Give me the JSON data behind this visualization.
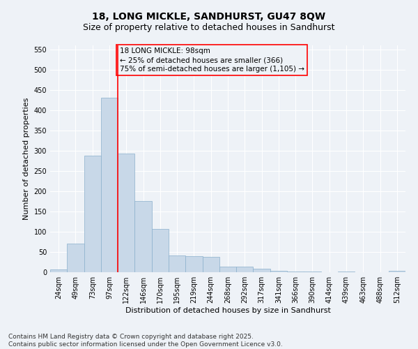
{
  "title_line1": "18, LONG MICKLE, SANDHURST, GU47 8QW",
  "title_line2": "Size of property relative to detached houses in Sandhurst",
  "xlabel": "Distribution of detached houses by size in Sandhurst",
  "ylabel": "Number of detached properties",
  "categories": [
    "24sqm",
    "49sqm",
    "73sqm",
    "97sqm",
    "122sqm",
    "146sqm",
    "170sqm",
    "195sqm",
    "219sqm",
    "244sqm",
    "268sqm",
    "292sqm",
    "317sqm",
    "341sqm",
    "366sqm",
    "390sqm",
    "414sqm",
    "439sqm",
    "463sqm",
    "488sqm",
    "512sqm"
  ],
  "values": [
    7,
    70,
    288,
    430,
    293,
    175,
    106,
    42,
    40,
    38,
    14,
    14,
    8,
    4,
    1,
    1,
    0,
    1,
    0,
    0,
    3
  ],
  "bar_color": "#c8d8e8",
  "bar_edge_color": "#8ab0cc",
  "vline_x_index": 3,
  "vline_color": "red",
  "annotation_line1": "18 LONG MICKLE: 98sqm",
  "annotation_line2": "← 25% of detached houses are smaller (366)",
  "annotation_line3": "75% of semi-detached houses are larger (1,105) →",
  "box_color": "red",
  "footer_line1": "Contains HM Land Registry data © Crown copyright and database right 2025.",
  "footer_line2": "Contains public sector information licensed under the Open Government Licence v3.0.",
  "ylim": [
    0,
    560
  ],
  "yticks": [
    0,
    50,
    100,
    150,
    200,
    250,
    300,
    350,
    400,
    450,
    500,
    550
  ],
  "background_color": "#eef2f7",
  "grid_color": "#ffffff",
  "title_fontsize": 10,
  "subtitle_fontsize": 9,
  "axis_label_fontsize": 8,
  "tick_fontsize": 7,
  "annotation_fontsize": 7.5,
  "footer_fontsize": 6.5
}
